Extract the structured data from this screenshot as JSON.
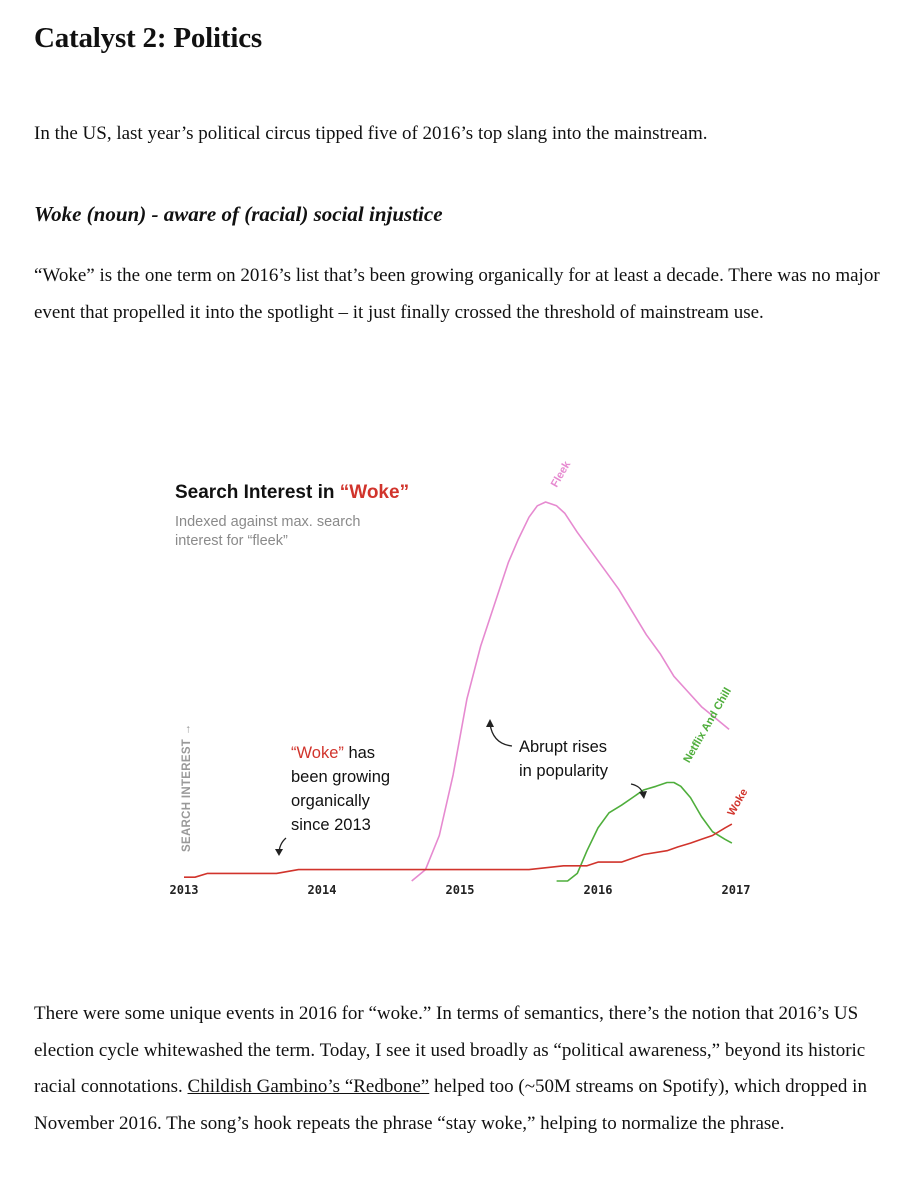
{
  "article": {
    "heading": "Catalyst 2: Politics",
    "intro": "In the US, last year’s political circus tipped five of 2016’s top slang into the mainstream.",
    "subheading": "Woke (noun) - aware of (racial) social injustice",
    "para1": "“Woke” is the one term on 2016’s list that’s been growing organically for at least a decade. There was no major event that propelled it into the spotlight – it just finally crossed the threshold of mainstream use.",
    "para2_before": "There were some unique events in 2016 for “woke.” In terms of semantics, there’s the notion that 2016’s US election cycle whitewashed the term. Today, I see it used broadly as “political awareness,” beyond its historic racial connotations. ",
    "para2_link": "Childish Gambino’s “Redbone”",
    "para2_after": " helped too (~50M streams on Spotify), which dropped in November 2016. The song’s hook repeats the phrase “stay woke,” helping to normalize the phrase."
  },
  "chart_data": {
    "type": "line",
    "title_prefix": "Search Interest in ",
    "title_highlight": "“Woke”",
    "subtitle_line1": "Indexed against max. search",
    "subtitle_line2": "interest for “fleek”",
    "ylabel": "SEARCH INTEREST →",
    "xlim": [
      2013,
      2017
    ],
    "ylim": [
      0,
      100
    ],
    "x_ticks": [
      "2013",
      "2014",
      "2015",
      "2016",
      "2017"
    ],
    "grid": false,
    "series": [
      {
        "name": "Fleek",
        "color": "#e68ad0",
        "x": [
          2014.65,
          2014.75,
          2014.85,
          2014.95,
          2015.05,
          2015.15,
          2015.25,
          2015.35,
          2015.42,
          2015.5,
          2015.56,
          2015.62,
          2015.7,
          2015.76,
          2015.85,
          2015.95,
          2016.05,
          2016.15,
          2016.25,
          2016.35,
          2016.45,
          2016.55,
          2016.65,
          2016.75,
          2016.85,
          2016.95
        ],
        "values": [
          0,
          3,
          12,
          28,
          48,
          62,
          73,
          84,
          90,
          96,
          99,
          100,
          99,
          97,
          92,
          87,
          82,
          77,
          71,
          65,
          60,
          54,
          50,
          46,
          43,
          40
        ]
      },
      {
        "name": "Netflix And Chill",
        "color": "#4fae3c",
        "x": [
          2015.7,
          2015.78,
          2015.85,
          2015.92,
          2016.0,
          2016.08,
          2016.17,
          2016.25,
          2016.33,
          2016.42,
          2016.5,
          2016.55,
          2016.6,
          2016.67,
          2016.75,
          2016.83,
          2016.92,
          2016.97
        ],
        "values": [
          0,
          0,
          2,
          8,
          14,
          18,
          20,
          22,
          24,
          25,
          26,
          26,
          25,
          22,
          17,
          13,
          11,
          10
        ]
      },
      {
        "name": "Woke",
        "color": "#d1342c",
        "x": [
          2013.0,
          2013.08,
          2013.17,
          2013.33,
          2013.5,
          2013.67,
          2013.83,
          2014.0,
          2014.25,
          2014.5,
          2014.75,
          2015.0,
          2015.25,
          2015.5,
          2015.75,
          2015.92,
          2016.0,
          2016.08,
          2016.17,
          2016.25,
          2016.33,
          2016.5,
          2016.58,
          2016.67,
          2016.75,
          2016.83,
          2016.92,
          2016.97
        ],
        "values": [
          1,
          1,
          2,
          2,
          2,
          2,
          3,
          3,
          3,
          3,
          3,
          3,
          3,
          3,
          4,
          4,
          5,
          5,
          5,
          6,
          7,
          8,
          9,
          10,
          11,
          12,
          14,
          15
        ]
      }
    ],
    "annotations": {
      "woke_note_highlight": "“Woke”",
      "woke_note_rest": " has",
      "woke_note_lines": [
        "been growing",
        "organically",
        "since 2013"
      ],
      "rise_note_lines": [
        "Abrupt rises",
        "in popularity"
      ]
    }
  }
}
